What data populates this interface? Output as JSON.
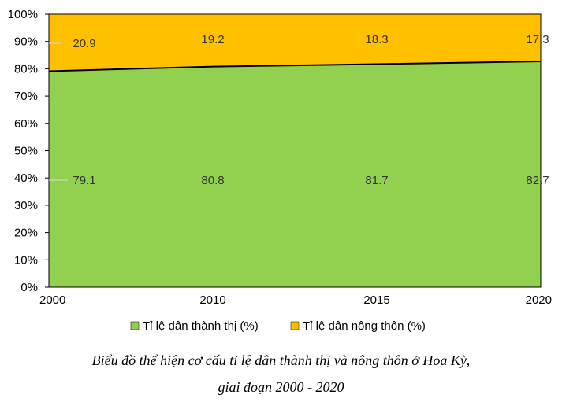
{
  "chart_data": {
    "type": "area",
    "stacked": "percent",
    "categories": [
      "2000",
      "2010",
      "2015",
      "2020"
    ],
    "series": [
      {
        "name": "Tỉ lệ dân thành thị (%)",
        "values": [
          79.1,
          80.8,
          81.7,
          82.7
        ],
        "color": "#92D050"
      },
      {
        "name": "Tỉ lệ dân nông thôn (%)",
        "values": [
          20.9,
          19.2,
          18.3,
          17.3
        ],
        "color": "#FFC000"
      }
    ],
    "y_ticks": [
      "0%",
      "10%",
      "20%",
      "30%",
      "40%",
      "50%",
      "60%",
      "70%",
      "80%",
      "90%",
      "100%"
    ],
    "ylim": [
      0,
      100
    ],
    "legend_position": "bottom",
    "grid": false
  },
  "caption": {
    "line1": "Biểu đồ thể hiện cơ cấu tỉ lệ dân thành thị và nông thôn ở Hoa Kỳ,",
    "line2": "giai đoạn 2000 - 2020"
  }
}
